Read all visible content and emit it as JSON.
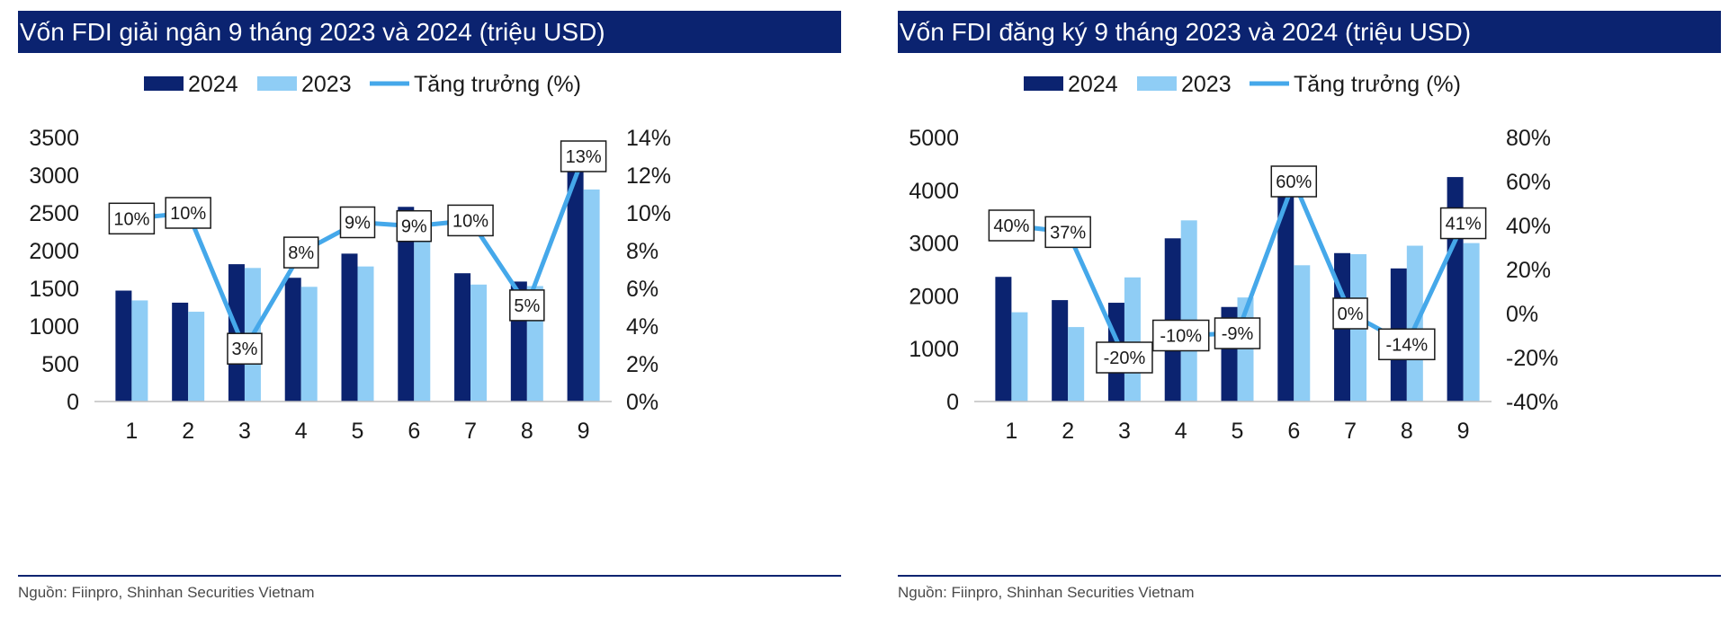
{
  "colors": {
    "bar2024": "#0b2370",
    "bar2023": "#8fcdf5",
    "line": "#45a8ea",
    "axis": "#bfbfbf",
    "title_bg": "#0b2370"
  },
  "chart_data": [
    {
      "type": "bar",
      "title": "Vốn FDI giải ngân 9 tháng 2023 và 2024 (triệu USD)",
      "source": "Nguồn: Fiinpro, Shinhan Securities Vietnam",
      "categories": [
        "1",
        "2",
        "3",
        "4",
        "5",
        "6",
        "7",
        "8",
        "9"
      ],
      "series": [
        {
          "name": "2024",
          "kind": "bar",
          "axis": "left",
          "values": [
            1470,
            1310,
            1820,
            1640,
            1960,
            2580,
            1700,
            1590,
            3100
          ]
        },
        {
          "name": "2023",
          "kind": "bar",
          "axis": "left",
          "values": [
            1340,
            1190,
            1770,
            1520,
            1790,
            2200,
            1550,
            1530,
            2810
          ]
        },
        {
          "name": "Tăng trưởng (%)",
          "kind": "line",
          "axis": "right",
          "values": [
            9.7,
            10.0,
            2.8,
            7.9,
            9.5,
            9.3,
            9.6,
            5.1,
            13.0
          ],
          "labels": [
            "10%",
            "10%",
            "3%",
            "8%",
            "9%",
            "9%",
            "10%",
            "5%",
            "13%"
          ]
        }
      ],
      "ylim_left": [
        0,
        3500
      ],
      "yticks_left": [
        "0",
        "500",
        "1000",
        "1500",
        "2000",
        "2500",
        "3000",
        "3500"
      ],
      "ylim_right": [
        0,
        14
      ],
      "yticks_right": [
        "0%",
        "2%",
        "4%",
        "6%",
        "8%",
        "10%",
        "12%",
        "14%"
      ],
      "legend": "top-center",
      "grid": false
    },
    {
      "type": "bar",
      "title": "Vốn FDI đăng ký 9 tháng 2023 và 2024 (triệu USD)",
      "source": "Nguồn: Fiinpro, Shinhan Securities Vietnam",
      "categories": [
        "1",
        "2",
        "3",
        "4",
        "5",
        "6",
        "7",
        "8",
        "9"
      ],
      "series": [
        {
          "name": "2024",
          "kind": "bar",
          "axis": "left",
          "values": [
            2360,
            1920,
            1870,
            3090,
            1790,
            4150,
            2810,
            2520,
            4250
          ]
        },
        {
          "name": "2023",
          "kind": "bar",
          "axis": "left",
          "values": [
            1690,
            1410,
            2350,
            3430,
            1970,
            2580,
            2790,
            2950,
            3000
          ]
        },
        {
          "name": "Tăng trưởng (%)",
          "kind": "line",
          "axis": "right",
          "values": [
            40,
            37,
            -20,
            -10,
            -9,
            60,
            0,
            -14,
            41
          ],
          "labels": [
            "40%",
            "37%",
            "-20%",
            "-10%",
            "-9%",
            "60%",
            "0%",
            "-14%",
            "41%"
          ]
        }
      ],
      "ylim_left": [
        0,
        5000
      ],
      "yticks_left": [
        "0",
        "1000",
        "2000",
        "3000",
        "4000",
        "5000"
      ],
      "ylim_right": [
        -40,
        80
      ],
      "yticks_right": [
        "-40%",
        "-20%",
        "0%",
        "20%",
        "40%",
        "60%",
        "80%"
      ],
      "legend": "top-center",
      "grid": false
    }
  ]
}
